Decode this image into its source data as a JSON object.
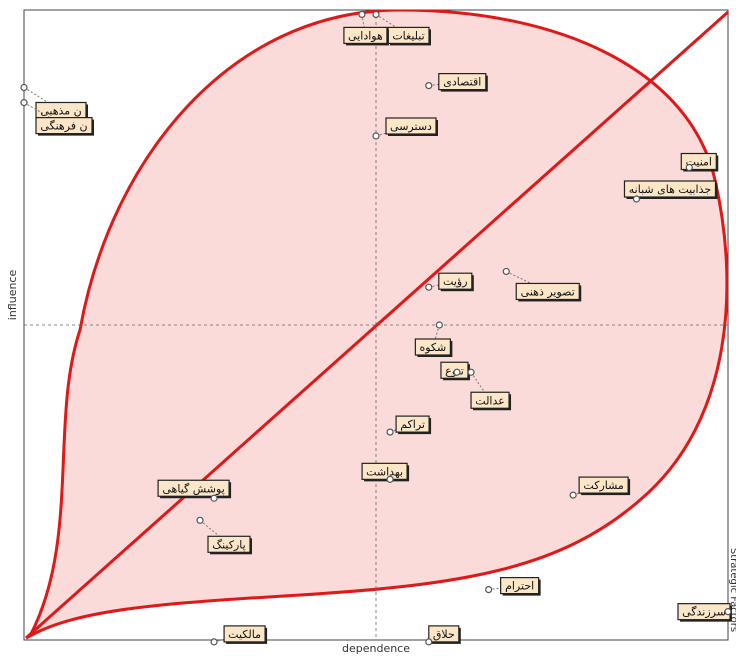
{
  "chart_data": {
    "type": "scatter",
    "xlabel": "dependence",
    "ylabel": "influence",
    "right_label": "Strategic Factors",
    "xlim": [
      0,
      1
    ],
    "ylim": [
      0,
      1
    ],
    "points": [
      {
        "name": "تبلیغات",
        "x": 0.5,
        "y": 0.993
      },
      {
        "name": "هوادایی",
        "x": 0.48,
        "y": 0.993
      },
      {
        "name": "ن مذهبی",
        "x": 0.0,
        "y": 0.877
      },
      {
        "name": "ن فرهنگی",
        "x": 0.0,
        "y": 0.853
      },
      {
        "name": "اقتصادی",
        "x": 0.575,
        "y": 0.88
      },
      {
        "name": "دسترسی",
        "x": 0.5,
        "y": 0.8
      },
      {
        "name": "امنیت",
        "x": 0.945,
        "y": 0.75
      },
      {
        "name": "جذابیت های شبانه",
        "x": 0.87,
        "y": 0.7
      },
      {
        "name": "رؤیت",
        "x": 0.575,
        "y": 0.56
      },
      {
        "name": "تصویر ذهنی",
        "x": 0.685,
        "y": 0.585
      },
      {
        "name": "شکوه",
        "x": 0.59,
        "y": 0.5
      },
      {
        "name": "تنوع",
        "x": 0.615,
        "y": 0.425
      },
      {
        "name": "عدالت",
        "x": 0.635,
        "y": 0.425
      },
      {
        "name": "تراکم",
        "x": 0.52,
        "y": 0.33
      },
      {
        "name": "بهداشت",
        "x": 0.52,
        "y": 0.255
      },
      {
        "name": "مشارکت",
        "x": 0.78,
        "y": 0.23
      },
      {
        "name": "پوشش گیاهی",
        "x": 0.27,
        "y": 0.225
      },
      {
        "name": "پارکینگ",
        "x": 0.25,
        "y": 0.19
      },
      {
        "name": "احترام",
        "x": 0.66,
        "y": 0.08
      },
      {
        "name": "سرزندگی",
        "x": 1.0,
        "y": 0.045
      },
      {
        "name": "حلاق",
        "x": 0.575,
        "y": -0.003
      },
      {
        "name": "مالکیت",
        "x": 0.27,
        "y": -0.003
      }
    ]
  }
}
